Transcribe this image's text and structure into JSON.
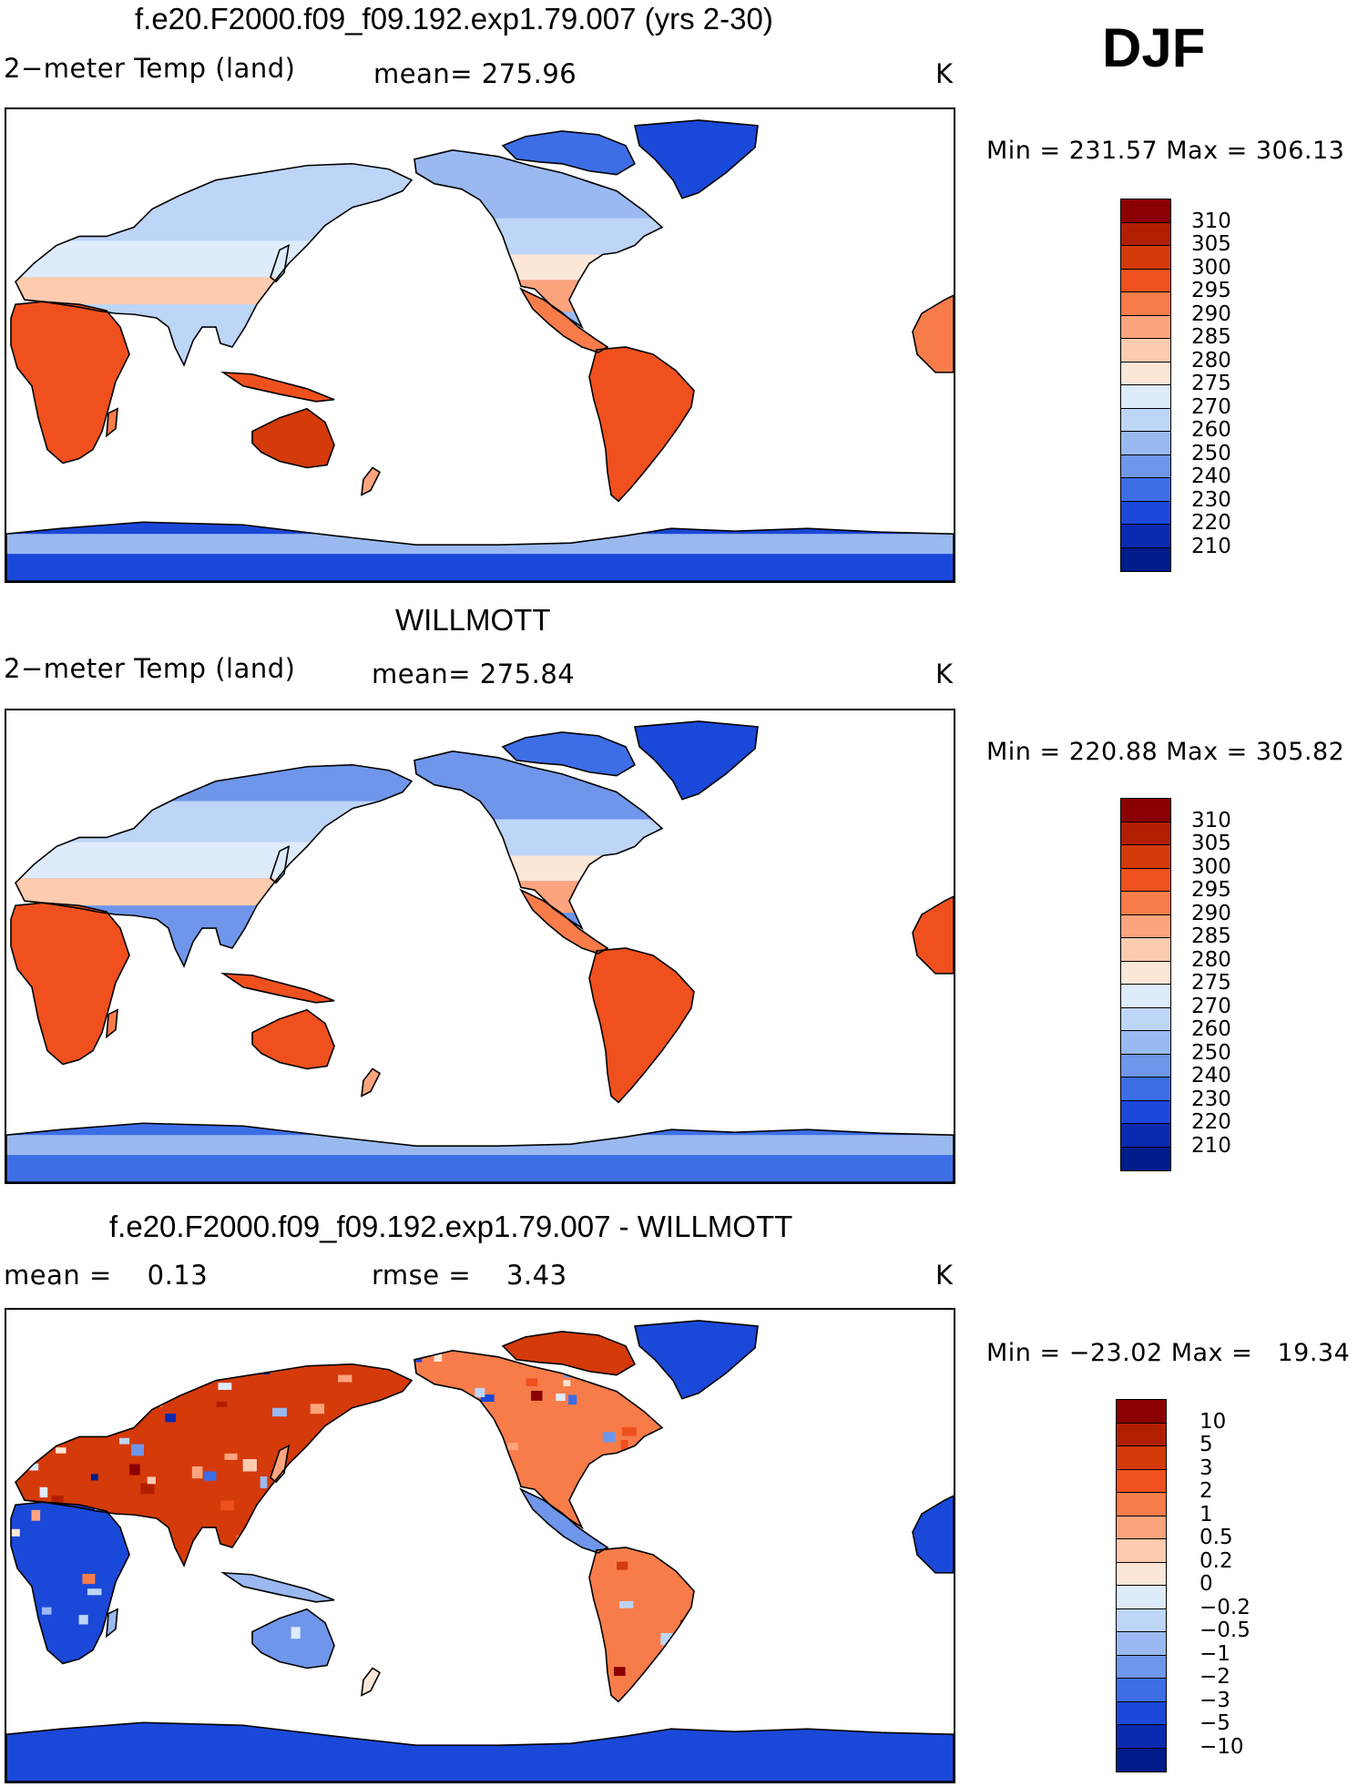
{
  "season": "DJF",
  "panels": [
    {
      "title": "f.e20.F2000.f09_f09.192.exp1.79.007 (yrs 2-30)",
      "left": "2−meter Temp (land)",
      "middle": "mean= 275.96",
      "units": "K",
      "minmax": "Min = 231.57 Max = 306.13",
      "scale": "abs",
      "field": "model"
    },
    {
      "title": "WILLMOTT",
      "left": "2−meter Temp (land)",
      "middle": "mean= 275.84",
      "units": "K",
      "minmax": "Min = 220.88 Max = 305.82",
      "scale": "abs",
      "field": "obs"
    },
    {
      "title": "f.e20.F2000.f09_f09.192.exp1.79.007 - WILLMOTT",
      "left": "mean =    0.13",
      "middle": "rmse =    3.43",
      "units": "K",
      "minmax": "Min = −23.02 Max =   19.34",
      "scale": "diff",
      "field": "diff"
    }
  ],
  "colorbars": {
    "abs": {
      "labels": [
        "310",
        "305",
        "300",
        "295",
        "290",
        "285",
        "280",
        "275",
        "270",
        "260",
        "250",
        "240",
        "230",
        "220",
        "210"
      ],
      "colors": [
        "#8b0000",
        "#b21e00",
        "#d43a0a",
        "#f0501e",
        "#f77c4a",
        "#fca47e",
        "#fdcbb0",
        "#fde7d6",
        "#deebfb",
        "#bdd5f6",
        "#9ab9f0",
        "#6f96ea",
        "#3d6ee6",
        "#1a48d8",
        "#0a2ab0",
        "#001c8a"
      ]
    },
    "diff": {
      "labels": [
        "10",
        "5",
        "3",
        "2",
        "1",
        "0.5",
        "0.2",
        "0",
        "−0.2",
        "−0.5",
        "−1",
        "−2",
        "−3",
        "−5",
        "−10"
      ],
      "colors": [
        "#8b0000",
        "#b21e00",
        "#d43a0a",
        "#f0501e",
        "#f77c4a",
        "#fca47e",
        "#fdcbb0",
        "#fde7d6",
        "#deebfb",
        "#bdd5f6",
        "#9ab9f0",
        "#6f96ea",
        "#3d6ee6",
        "#1a48d8",
        "#0a2ab0",
        "#001c8a"
      ]
    }
  }
}
